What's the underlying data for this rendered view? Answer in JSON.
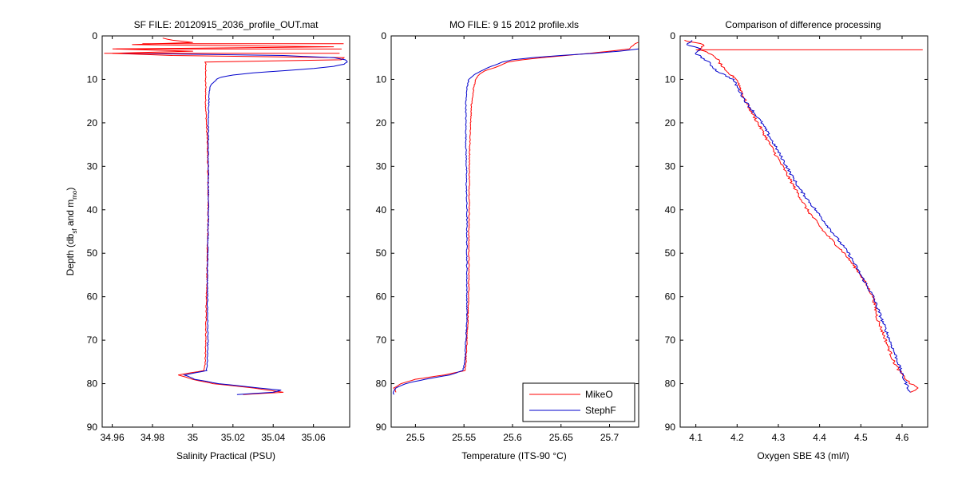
{
  "figure": {
    "ylabel_main": "Depth (db",
    "ylabel_sub1": "sf",
    "ylabel_mid": " and m",
    "ylabel_sub2": "mo",
    "ylabel_end": ")"
  },
  "chart_data": [
    {
      "type": "line",
      "title": "SF FILE: 20120915_2036_profile_OUT.mat",
      "xlabel": "Salinity Practical (PSU)",
      "ylabel": "Depth (db_sf and m_mo)",
      "xlim": [
        34.955,
        35.078
      ],
      "ylim": [
        0,
        90
      ],
      "y_reversed": true,
      "xticks": [
        34.96,
        34.98,
        35,
        35.02,
        35.04,
        35.06
      ],
      "xtick_labels": [
        "34.96",
        "34.98",
        "35",
        "35.02",
        "35.04",
        "35.06"
      ],
      "yticks": [
        0,
        10,
        20,
        30,
        40,
        50,
        60,
        70,
        80,
        90
      ],
      "ytick_labels": [
        "0",
        "10",
        "20",
        "30",
        "40",
        "50",
        "60",
        "70",
        "80",
        "90"
      ],
      "series": [
        {
          "name": "MikeO",
          "color": "#ff0000",
          "depth": [
            0.5,
            1.0,
            1.5,
            2.0,
            2.5,
            3.0,
            3.5,
            4.0,
            4.5,
            5.0,
            5.5,
            6.0,
            6.5,
            7.0,
            8.0,
            9.0,
            10.0,
            12.0,
            15.0,
            20.0,
            25.0,
            30.0,
            35.0,
            40.0,
            45.0,
            50.0,
            55.0,
            60.0,
            65.0,
            70.0,
            75.0,
            77.0,
            78.0,
            79.0,
            80.0,
            81.0,
            82.0,
            82.5
          ],
          "values": [
            34.985,
            34.99,
            35.0,
            34.97,
            35.07,
            34.96,
            35.0,
            34.96,
            34.99,
            35.075,
            35.074,
            35.006,
            35.0068,
            35.0062,
            35.0065,
            35.0065,
            35.0063,
            35.0065,
            35.0064,
            35.0068,
            35.0073,
            35.0075,
            35.0076,
            35.0077,
            35.0075,
            35.0072,
            35.0071,
            35.0068,
            35.0066,
            35.0065,
            35.0062,
            35.0055,
            34.993,
            35.0,
            35.01,
            35.03,
            35.045,
            35.025
          ]
        },
        {
          "name": "StephF",
          "color": "#0000cc",
          "depth": [
            4.0,
            4.5,
            5.0,
            5.5,
            6.0,
            6.5,
            7.0,
            7.5,
            8.0,
            8.5,
            9.0,
            9.5,
            10.0,
            11.0,
            12.0,
            15.0,
            20.0,
            25.0,
            30.0,
            35.0,
            40.0,
            45.0,
            50.0,
            55.0,
            60.0,
            65.0,
            70.0,
            75.0,
            77.0,
            78.0,
            79.0,
            80.0,
            81.0,
            81.5,
            82.0,
            82.5
          ],
          "values": [
            34.965,
            35.045,
            35.07,
            35.076,
            35.077,
            35.075,
            35.07,
            35.06,
            35.045,
            35.03,
            35.02,
            35.014,
            35.012,
            35.0095,
            35.0085,
            35.008,
            35.0078,
            35.0077,
            35.0077,
            35.0078,
            35.0078,
            35.0077,
            35.0075,
            35.0073,
            35.0073,
            35.0074,
            35.0075,
            35.0072,
            35.0068,
            34.996,
            35.001,
            35.013,
            35.033,
            35.044,
            35.04,
            35.022
          ]
        }
      ],
      "noise_spikes_red": [
        {
          "depth": 1.8,
          "from": 34.975,
          "to": 35.075
        },
        {
          "depth": 3.0,
          "from": 34.962,
          "to": 35.074
        },
        {
          "depth": 4.0,
          "from": 34.956,
          "to": 35.073
        }
      ]
    },
    {
      "type": "line",
      "title": "MO FILE: 9 15 2012 profile.xls",
      "xlabel": "Temperature (ITS-90 °C)",
      "ylabel": "",
      "xlim": [
        25.475,
        25.73
      ],
      "ylim": [
        0,
        90
      ],
      "y_reversed": true,
      "xticks": [
        25.5,
        25.55,
        25.6,
        25.65,
        25.7
      ],
      "xtick_labels": [
        "25.5",
        "25.55",
        "25.6",
        "25.65",
        "25.7"
      ],
      "yticks": [
        0,
        10,
        20,
        30,
        40,
        50,
        60,
        70,
        80,
        90
      ],
      "ytick_labels": [
        "0",
        "10",
        "20",
        "30",
        "40",
        "50",
        "60",
        "70",
        "80",
        "90"
      ],
      "legend": {
        "position": "bottom-right",
        "entries": [
          {
            "label": "MikeO",
            "color": "#ff0000"
          },
          {
            "label": "StephF",
            "color": "#0000cc"
          }
        ]
      },
      "series": [
        {
          "name": "MikeO",
          "color": "#ff0000",
          "depth": [
            1.5,
            2.0,
            3.0,
            3.5,
            4.0,
            4.5,
            5.0,
            5.5,
            6.0,
            7.0,
            8.0,
            9.0,
            10.0,
            12.0,
            15.0,
            20.0,
            25.0,
            30.0,
            35.0,
            40.0,
            45.0,
            50.0,
            55.0,
            60.0,
            65.0,
            70.0,
            75.0,
            77.0,
            78.0,
            79.0,
            80.0,
            81.0,
            82.0
          ],
          "values": [
            25.729,
            25.725,
            25.72,
            25.7,
            25.68,
            25.655,
            25.63,
            25.61,
            25.595,
            25.585,
            25.572,
            25.565,
            25.562,
            25.56,
            25.558,
            25.557,
            25.556,
            25.5555,
            25.5555,
            25.5555,
            25.555,
            25.555,
            25.555,
            25.555,
            25.554,
            25.553,
            25.552,
            25.551,
            25.53,
            25.5,
            25.485,
            25.478,
            25.48
          ]
        },
        {
          "name": "StephF",
          "color": "#0000cc",
          "depth": [
            3.0,
            3.5,
            4.0,
            4.5,
            5.0,
            5.5,
            6.0,
            7.0,
            8.0,
            9.0,
            10.0,
            12.0,
            15.0,
            20.0,
            25.0,
            30.0,
            35.0,
            40.0,
            45.0,
            50.0,
            55.0,
            60.0,
            65.0,
            70.0,
            75.0,
            77.0,
            78.0,
            79.0,
            80.0,
            81.0,
            82.0,
            82.5
          ],
          "values": [
            25.73,
            25.71,
            25.685,
            25.65,
            25.62,
            25.6,
            25.59,
            25.578,
            25.568,
            25.56,
            25.555,
            25.553,
            25.552,
            25.552,
            25.552,
            25.5525,
            25.5525,
            25.553,
            25.553,
            25.553,
            25.553,
            25.553,
            25.553,
            25.552,
            25.551,
            25.549,
            25.535,
            25.51,
            25.49,
            25.48,
            25.477,
            25.478
          ]
        }
      ]
    },
    {
      "type": "line",
      "title": "Comparison of difference processing",
      "xlabel": "Oxygen SBE 43 (ml/l)",
      "ylabel": "",
      "xlim": [
        4.062,
        4.662
      ],
      "ylim": [
        0,
        90
      ],
      "y_reversed": true,
      "xticks": [
        4.1,
        4.2,
        4.3,
        4.4,
        4.5,
        4.6
      ],
      "xtick_labels": [
        "4.1",
        "4.2",
        "4.3",
        "4.4",
        "4.5",
        "4.6"
      ],
      "yticks": [
        0,
        10,
        20,
        30,
        40,
        50,
        60,
        70,
        80,
        90
      ],
      "ytick_labels": [
        "0",
        "10",
        "20",
        "30",
        "40",
        "50",
        "60",
        "70",
        "80",
        "90"
      ],
      "series": [
        {
          "name": "MikeO",
          "color": "#ff0000",
          "depth": [
            1.0,
            2.0,
            3.0,
            5.0,
            8.0,
            10.0,
            15.0,
            20.0,
            25.0,
            30.0,
            35.0,
            40.0,
            45.0,
            50.0,
            55.0,
            60.0,
            65.0,
            70.0,
            75.0,
            78.0,
            80.0,
            81.0,
            82.0
          ],
          "values": [
            4.07,
            4.12,
            4.11,
            4.15,
            4.17,
            4.2,
            4.22,
            4.25,
            4.28,
            4.31,
            4.34,
            4.37,
            4.41,
            4.46,
            4.5,
            4.53,
            4.54,
            4.56,
            4.58,
            4.6,
            4.62,
            4.64,
            4.62
          ]
        },
        {
          "name": "StephF",
          "color": "#0000cc",
          "depth": [
            1.0,
            2.0,
            3.0,
            4.0,
            6.0,
            8.0,
            10.0,
            15.0,
            20.0,
            25.0,
            30.0,
            35.0,
            40.0,
            45.0,
            50.0,
            55.0,
            60.0,
            65.0,
            70.0,
            75.0,
            78.0,
            80.0,
            82.0
          ],
          "values": [
            4.09,
            4.08,
            4.11,
            4.1,
            4.13,
            4.15,
            4.19,
            4.22,
            4.26,
            4.29,
            4.32,
            4.35,
            4.39,
            4.43,
            4.47,
            4.5,
            4.53,
            4.55,
            4.57,
            4.59,
            4.6,
            4.61,
            4.62
          ]
        }
      ],
      "noise_spikes_red": [
        {
          "depth": 3.2,
          "from": 4.1,
          "to": 4.65
        }
      ]
    }
  ]
}
